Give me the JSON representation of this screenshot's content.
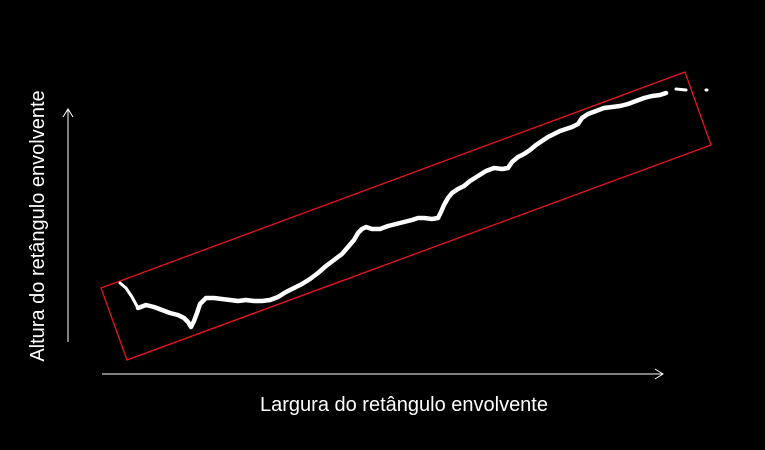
{
  "diagram": {
    "x_axis_label": "Largura do retângulo envolvente",
    "y_axis_label": "Altura do retângulo envolvente"
  },
  "colors": {
    "background": "#000000",
    "curve": "#ffffff",
    "bounding_box": "#e8141c",
    "axes": "#ffffff"
  }
}
